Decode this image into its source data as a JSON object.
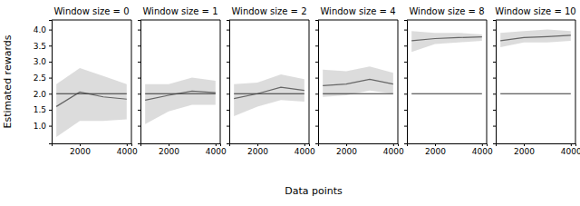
{
  "x_label": "Data points",
  "y_label": "Estimated rewards",
  "chart_data": [
    {
      "type": "line",
      "title": "Window size = 0",
      "x": [
        1000,
        2000,
        3000,
        4000
      ],
      "xlim": [
        800,
        4200
      ],
      "xticks": [
        2000,
        4000
      ],
      "ylim": [
        0.45,
        4.3
      ],
      "yticks": [
        {
          "value": 1,
          "label": "1.0"
        },
        {
          "value": 1.5,
          "label": "1.5"
        },
        {
          "value": 2,
          "label": "2.0"
        },
        {
          "value": 2.5,
          "label": "2.5"
        },
        {
          "value": 3,
          "label": "3.0"
        },
        {
          "value": 3.5,
          "label": "3.5"
        },
        {
          "value": 4,
          "label": "4.0"
        }
      ],
      "series": [
        {
          "color": "#666666",
          "values": [
            1.6,
            2.05,
            1.9,
            1.83
          ],
          "lower": [
            0.65,
            1.15,
            1.15,
            1.2
          ],
          "upper": [
            2.3,
            2.8,
            2.55,
            2.3
          ]
        },
        {
          "color": "#333333",
          "values": [
            2,
            2,
            2,
            2
          ]
        }
      ]
    },
    {
      "type": "line",
      "title": "Window size = 1",
      "x": [
        1000,
        2000,
        3000,
        4000
      ],
      "xlim": [
        800,
        4200
      ],
      "xticks": [
        2000,
        4000
      ],
      "ylim": [
        0.45,
        4.3
      ],
      "yticks": [
        1,
        1.5,
        2,
        2.5,
        3,
        3.5,
        4
      ],
      "tick_labels": "x",
      "series": [
        {
          "color": "#666666",
          "values": [
            1.8,
            1.95,
            2.08,
            2.03
          ],
          "lower": [
            1.05,
            1.45,
            1.65,
            1.65
          ],
          "upper": [
            2.3,
            2.3,
            2.5,
            2.4
          ]
        },
        {
          "color": "#333333",
          "values": [
            2,
            2,
            2,
            2
          ]
        }
      ]
    },
    {
      "type": "line",
      "title": "Window size = 2",
      "x": [
        1000,
        2000,
        3000,
        4000
      ],
      "xlim": [
        800,
        4200
      ],
      "xticks": [
        2000,
        4000
      ],
      "ylim": [
        0.45,
        4.3
      ],
      "yticks": [
        1,
        1.5,
        2,
        2.5,
        3,
        3.5,
        4
      ],
      "tick_labels": "x",
      "series": [
        {
          "color": "#666666",
          "values": [
            1.85,
            2.0,
            2.2,
            2.1
          ],
          "lower": [
            1.3,
            1.6,
            1.8,
            1.75
          ],
          "upper": [
            2.3,
            2.35,
            2.6,
            2.45
          ]
        },
        {
          "color": "#333333",
          "values": [
            2,
            2,
            2,
            2
          ]
        }
      ]
    },
    {
      "type": "line",
      "title": "Window size = 4",
      "x": [
        1000,
        2000,
        3000,
        4000
      ],
      "xlim": [
        800,
        4200
      ],
      "xticks": [
        2000,
        4000
      ],
      "ylim": [
        0.45,
        4.3
      ],
      "yticks": [
        1,
        1.5,
        2,
        2.5,
        3,
        3.5,
        4
      ],
      "tick_labels": "x",
      "series": [
        {
          "color": "#666666",
          "values": [
            2.25,
            2.3,
            2.45,
            2.3
          ],
          "lower": [
            1.9,
            1.95,
            2.1,
            2.0
          ],
          "upper": [
            2.75,
            2.7,
            2.85,
            2.65
          ]
        },
        {
          "color": "#333333",
          "values": [
            2,
            2,
            2,
            2
          ]
        }
      ]
    },
    {
      "type": "line",
      "title": "Window size = 8",
      "x": [
        1000,
        2000,
        3000,
        4000
      ],
      "xlim": [
        800,
        4200
      ],
      "xticks": [
        2000,
        4000
      ],
      "ylim": [
        0.45,
        4.3
      ],
      "yticks": [
        1,
        1.5,
        2,
        2.5,
        3,
        3.5,
        4
      ],
      "tick_labels": "x",
      "series": [
        {
          "color": "#666666",
          "values": [
            3.65,
            3.72,
            3.75,
            3.77
          ],
          "lower": [
            3.3,
            3.55,
            3.6,
            3.65
          ],
          "upper": [
            3.95,
            3.9,
            3.9,
            3.85
          ]
        },
        {
          "color": "#333333",
          "values": [
            2,
            2,
            2,
            2
          ]
        }
      ]
    },
    {
      "type": "line",
      "title": "Window size = 10",
      "x": [
        1000,
        2000,
        3000,
        4000
      ],
      "xlim": [
        800,
        4200
      ],
      "xticks": [
        2000,
        4000
      ],
      "ylim": [
        0.45,
        4.3
      ],
      "yticks": [
        1,
        1.5,
        2,
        2.5,
        3,
        3.5,
        4
      ],
      "tick_labels": "x",
      "series": [
        {
          "color": "#666666",
          "values": [
            3.65,
            3.75,
            3.78,
            3.82
          ],
          "lower": [
            3.45,
            3.6,
            3.6,
            3.65
          ],
          "upper": [
            3.9,
            3.95,
            4.0,
            3.95
          ]
        },
        {
          "color": "#333333",
          "values": [
            2,
            2,
            2,
            2
          ]
        }
      ]
    }
  ]
}
